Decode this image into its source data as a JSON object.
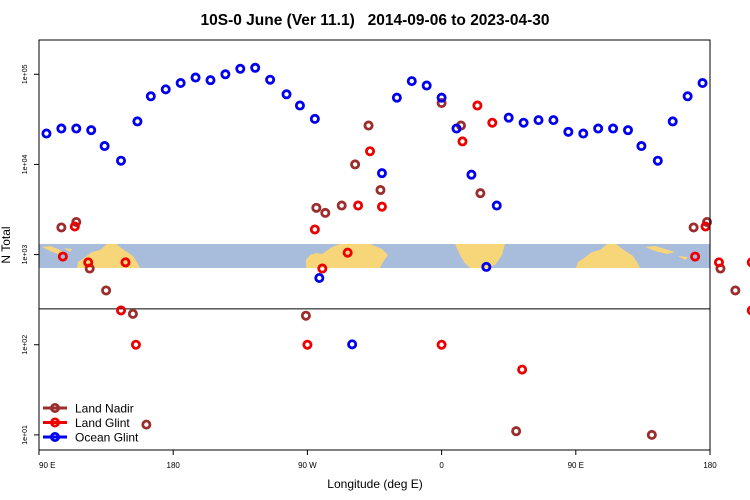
{
  "chart_data": {
    "type": "scatter",
    "title": "10S-0 June (Ver 11.1)   2014-09-06 to 2023-04-30",
    "xlabel": "Longitude (deg E)",
    "ylabel": "N Total",
    "x_scale": "linear",
    "y_scale": "log",
    "xlim": [
      90,
      540
    ],
    "ylim": [
      6.8,
      240000
    ],
    "x_ticks": [
      {
        "value": 90,
        "label": "90 E"
      },
      {
        "value": 180,
        "label": "180"
      },
      {
        "value": 270,
        "label": "90 W"
      },
      {
        "value": 360,
        "label": "0"
      },
      {
        "value": 450,
        "label": "90 E"
      },
      {
        "value": 540,
        "label": "180"
      }
    ],
    "y_ticks": [
      {
        "value": 10,
        "label": "1e+01"
      },
      {
        "value": 100,
        "label": "1e+02"
      },
      {
        "value": 1000,
        "label": "1e+03"
      },
      {
        "value": 10000,
        "label": "1e+04"
      },
      {
        "value": 100000,
        "label": "1e+05"
      }
    ],
    "reference_line_y": 250,
    "legend_position": "bottom-left",
    "series": [
      {
        "name": "Land Nadir",
        "color": "#9b2d2d",
        "points": [
          [
            105,
            2000
          ],
          [
            115,
            2300
          ],
          [
            124,
            700
          ],
          [
            135,
            400
          ],
          [
            153,
            220
          ],
          [
            162,
            13
          ],
          [
            269,
            210
          ],
          [
            276,
            3300
          ],
          [
            282,
            2900
          ],
          [
            293,
            3500
          ],
          [
            302,
            10000
          ],
          [
            311,
            27000
          ],
          [
            319,
            5200
          ],
          [
            360,
            48000
          ],
          [
            373,
            27000
          ],
          [
            386,
            4800
          ],
          [
            410,
            11
          ],
          [
            501,
            10
          ],
          [
            529,
            2000
          ],
          [
            538,
            2300
          ],
          [
            547,
            700
          ],
          [
            557,
            400
          ],
          [
            576,
            220
          ],
          [
            585,
            13
          ]
        ]
      },
      {
        "name": "Land Glint",
        "color": "#ee0000",
        "points": [
          [
            106,
            950
          ],
          [
            114,
            2050
          ],
          [
            123,
            820
          ],
          [
            145,
            240
          ],
          [
            148,
            820
          ],
          [
            155,
            100
          ],
          [
            270,
            100
          ],
          [
            275,
            1900
          ],
          [
            280,
            700
          ],
          [
            297,
            1050
          ],
          [
            304,
            3500
          ],
          [
            312,
            14000
          ],
          [
            320,
            3400
          ],
          [
            360,
            100
          ],
          [
            374,
            18000
          ],
          [
            384,
            45000
          ],
          [
            394,
            29000
          ],
          [
            414,
            53
          ],
          [
            530,
            950
          ],
          [
            537,
            2050
          ],
          [
            546,
            820
          ],
          [
            568,
            240
          ],
          [
            568,
            820
          ],
          [
            578,
            100
          ]
        ]
      },
      {
        "name": "Ocean Glint",
        "color": "#0000ee",
        "points": [
          [
            95,
            22000
          ],
          [
            105,
            25000
          ],
          [
            115,
            25000
          ],
          [
            125,
            24000
          ],
          [
            134,
            16000
          ],
          [
            145,
            11000
          ],
          [
            156,
            30000
          ],
          [
            165,
            57000
          ],
          [
            175,
            68000
          ],
          [
            185,
            80000
          ],
          [
            195,
            92000
          ],
          [
            205,
            86000
          ],
          [
            215,
            100000
          ],
          [
            225,
            115000
          ],
          [
            235,
            118000
          ],
          [
            245,
            87000
          ],
          [
            256,
            60000
          ],
          [
            265,
            45000
          ],
          [
            275,
            32000
          ],
          [
            278,
            550
          ],
          [
            300,
            101
          ],
          [
            320,
            8000
          ],
          [
            330,
            55000
          ],
          [
            340,
            84000
          ],
          [
            350,
            75000
          ],
          [
            360,
            55000
          ],
          [
            370,
            25000
          ],
          [
            380,
            7700
          ],
          [
            390,
            730
          ],
          [
            397,
            3500
          ],
          [
            405,
            33000
          ],
          [
            415,
            29000
          ],
          [
            425,
            31000
          ],
          [
            435,
            31000
          ],
          [
            445,
            23000
          ],
          [
            455,
            22000
          ],
          [
            465,
            25000
          ],
          [
            475,
            25000
          ],
          [
            485,
            24000
          ],
          [
            494,
            16000
          ],
          [
            505,
            11000
          ],
          [
            515,
            30000
          ],
          [
            525,
            57000
          ],
          [
            535,
            80000
          ]
        ]
      }
    ]
  }
}
